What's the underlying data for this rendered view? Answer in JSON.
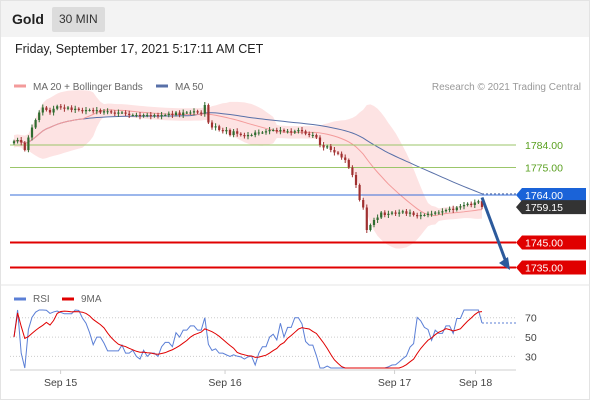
{
  "header": {
    "instrument": "Gold",
    "timeframe": "30 MIN",
    "datetime": "Friday, September 17, 2021 5:17:11 AM CET"
  },
  "legend": {
    "ma20_bb": "MA 20 + Bollinger Bands",
    "ma50": "MA 50",
    "credit": "Research © 2021 Trading Central",
    "rsi": "RSI",
    "ma9": "9MA"
  },
  "colors": {
    "up": "#2f6b2f",
    "down": "#a03030",
    "bb_fill": "#fde3e3",
    "ma20": "#f39a9a",
    "ma50": "#5870a8",
    "resistance": "#9bc66a",
    "pivot": "#3a6fd8",
    "support": "#e00000",
    "arrow": "#2c5a9c",
    "rsi": "#5b7fd6",
    "rsi_ma": "#e00000"
  },
  "chart_data": [
    {
      "type": "candlestick",
      "x_labels": [
        "Sep 15",
        "Sep 16",
        "Sep 17",
        "Sep 18"
      ],
      "ylim": [
        1728,
        1802
      ],
      "current_price": 1759.15,
      "levels": [
        {
          "value": 1784.0,
          "label": "1784.00",
          "kind": "resistance"
        },
        {
          "value": 1775.0,
          "label": "1775.00",
          "kind": "resistance"
        },
        {
          "value": 1764.0,
          "label": "1764.00",
          "kind": "pivot"
        },
        {
          "value": 1745.0,
          "label": "1745.00",
          "kind": "support"
        },
        {
          "value": 1735.0,
          "label": "1735.00",
          "kind": "support"
        }
      ],
      "forecast_arrow": {
        "from": 1763,
        "to": 1734
      },
      "close": [
        1785.5,
        1786.0,
        1785.0,
        1782.0,
        1787.0,
        1791.0,
        1794.0,
        1797.0,
        1799.0,
        1798.0,
        1797.0,
        1798.5,
        1799.5,
        1799.0,
        1798.5,
        1799.0,
        1798.0,
        1798.5,
        1798.0,
        1797.5,
        1798.0,
        1798.0,
        1797.5,
        1798.0,
        1797.0,
        1797.5,
        1797.5,
        1797.0,
        1796.5,
        1797.0,
        1797.0,
        1796.5,
        1796.0,
        1796.0,
        1796.0,
        1795.5,
        1796.0,
        1796.0,
        1795.5,
        1796.0,
        1795.5,
        1796.0,
        1796.0,
        1796.5,
        1796.0,
        1797.0,
        1796.0,
        1797.0,
        1797.0,
        1797.0,
        1797.5,
        1797.0,
        1796.5,
        1800.0,
        1793.0,
        1791.0,
        1791.5,
        1790.0,
        1789.5,
        1790.0,
        1788.0,
        1789.5,
        1788.5,
        1788.0,
        1787.5,
        1788.0,
        1788.0,
        1789.0,
        1789.0,
        1789.0,
        1789.5,
        1790.0,
        1790.0,
        1789.5,
        1790.0,
        1789.5,
        1789.5,
        1789.0,
        1789.5,
        1790.0,
        1789.5,
        1788.5,
        1788.0,
        1788.0,
        1787.0,
        1784.0,
        1783.0,
        1783.5,
        1782.0,
        1781.0,
        1780.5,
        1779.0,
        1778.0,
        1775.0,
        1772.0,
        1768.0,
        1762.0,
        1759.0,
        1750.0,
        1752.0,
        1754.0,
        1755.0,
        1757.0,
        1756.0,
        1756.5,
        1757.0,
        1756.5,
        1757.0,
        1757.5,
        1756.5,
        1757.0,
        1756.0,
        1755.5,
        1756.0,
        1756.0,
        1756.5,
        1756.5,
        1757.0,
        1757.0,
        1757.5,
        1758.0,
        1758.5,
        1758.0,
        1759.0,
        1759.5,
        1760.0,
        1760.5,
        1760.0,
        1761.0,
        1761.5,
        1759.2
      ]
    },
    {
      "type": "line",
      "series": [
        {
          "name": "RSI"
        },
        {
          "name": "9MA"
        }
      ],
      "yticks": [
        70,
        50,
        30
      ],
      "ylim": [
        18,
        78
      ]
    }
  ]
}
